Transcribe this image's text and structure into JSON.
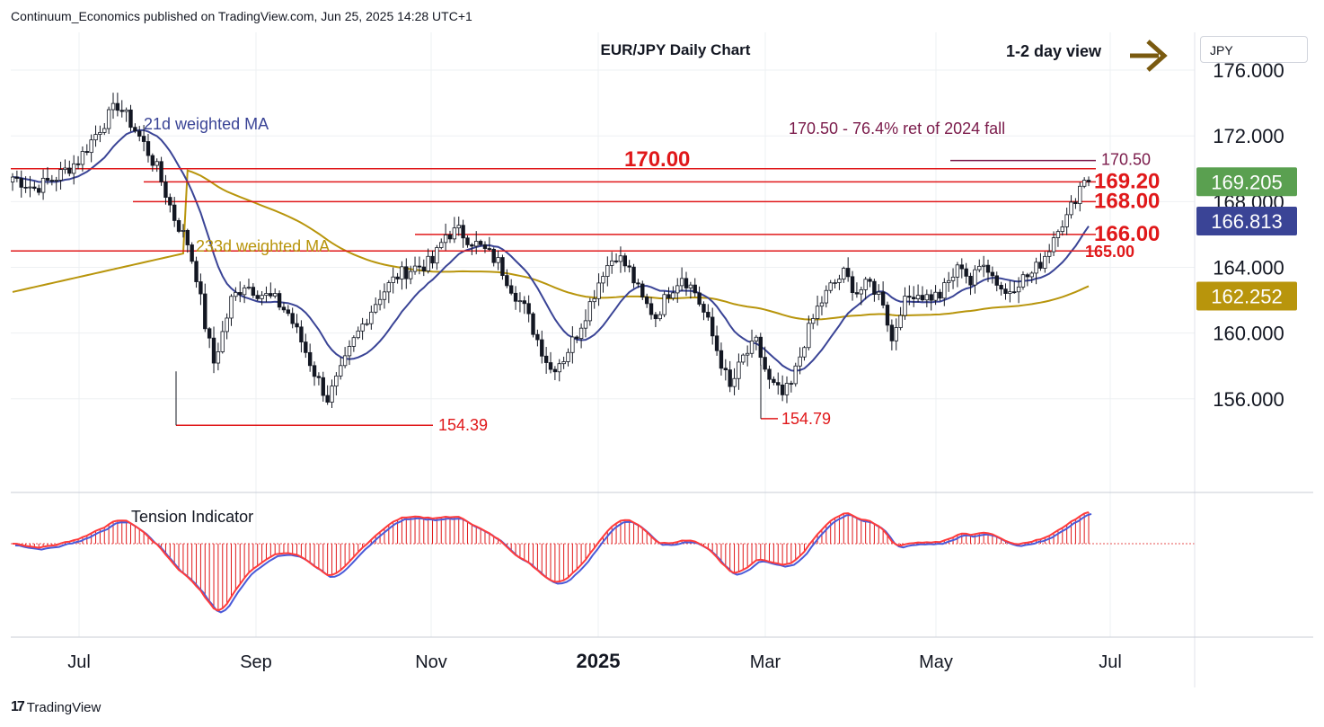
{
  "header": {
    "published": "Continuum_Economics published on TradingView.com, Jun 25, 2025 14:28 UTC+1"
  },
  "currency_selector": {
    "value": "JPY"
  },
  "footer": {
    "logo_text": "TradingView",
    "logo_mark": "17"
  },
  "chart_data": {
    "type": "candlestick",
    "title": "EUR/JPY Daily Chart",
    "view_note": "1-2 day view",
    "view_arrow": "right-arrow-icon",
    "y_ticks": [
      176,
      172,
      168,
      164,
      160,
      156
    ],
    "y_tick_labels": [
      "176.000",
      "172.000",
      "168.000",
      "164.000",
      "160.000",
      "156.000"
    ],
    "ylim": [
      150.3,
      178.3
    ],
    "x_labels": [
      "Jul",
      "Sep",
      "Nov",
      "2025",
      "Mar",
      "May",
      "Jul"
    ],
    "last_price": {
      "label": "169.205",
      "value": 169.205,
      "color": "#5aa050"
    },
    "ma21": {
      "name": "21d weighted MA",
      "label": "166.813",
      "value": 166.813,
      "color": "#3a4496"
    },
    "ma233": {
      "name": "233d weighted MA",
      "label": "162.252",
      "value": 162.252,
      "color": "#b8950c"
    },
    "levels": [
      {
        "label": "170.00",
        "value": 170.0,
        "color": "#e0181a"
      },
      {
        "label": "169.20",
        "value": 169.2,
        "color": "#e0181a"
      },
      {
        "label": "168.00",
        "value": 168.0,
        "color": "#e0181a"
      },
      {
        "label": "166.00",
        "value": 166.0,
        "color": "#e0181a"
      },
      {
        "label": "165.00",
        "value": 165.0,
        "color": "#e0181a"
      }
    ],
    "target": {
      "label": "170.50",
      "value": 170.5,
      "color": "#7a1a4a"
    },
    "annotation": {
      "text": "170.50 - 76.4% ret of 2024 fall",
      "color": "#7a1a4a"
    },
    "lows": [
      {
        "label": "154.39",
        "value": 154.39
      },
      {
        "label": "154.79",
        "value": 154.79
      }
    ],
    "indicator": {
      "name": "Tension Indicator"
    },
    "price_path": [
      [
        0,
        169.5
      ],
      [
        5,
        168.8
      ],
      [
        10,
        169.5
      ],
      [
        15,
        170.5
      ],
      [
        20,
        172.5
      ],
      [
        24,
        173.9
      ],
      [
        27,
        172.8
      ],
      [
        30,
        171.5
      ],
      [
        33,
        170.0
      ],
      [
        35,
        168.5
      ],
      [
        37,
        167.0
      ],
      [
        40,
        165.5
      ],
      [
        42,
        163.5
      ],
      [
        44,
        160.5
      ],
      [
        46,
        158.2
      ],
      [
        48,
        160.0
      ],
      [
        50,
        162.0
      ],
      [
        53,
        163.0
      ],
      [
        56,
        162.5
      ],
      [
        60,
        162.0
      ],
      [
        63,
        161.2
      ],
      [
        66,
        159.5
      ],
      [
        69,
        157.6
      ],
      [
        72,
        156.0
      ],
      [
        75,
        157.6
      ],
      [
        78,
        159.5
      ],
      [
        81,
        161.0
      ],
      [
        84,
        162.3
      ],
      [
        88,
        163.5
      ],
      [
        92,
        164.0
      ],
      [
        96,
        164.3
      ],
      [
        99,
        166.0
      ],
      [
        102,
        166.2
      ],
      [
        105,
        165.6
      ],
      [
        108,
        165.0
      ],
      [
        111,
        164.3
      ],
      [
        114,
        162.8
      ],
      [
        117,
        161.5
      ],
      [
        120,
        159.6
      ],
      [
        123,
        157.8
      ],
      [
        126,
        158.5
      ],
      [
        129,
        160.0
      ],
      [
        132,
        161.8
      ],
      [
        135,
        163.8
      ],
      [
        138,
        164.8
      ],
      [
        141,
        163.8
      ],
      [
        144,
        162.0
      ],
      [
        147,
        161.0
      ],
      [
        150,
        162.5
      ],
      [
        153,
        163.5
      ],
      [
        156,
        162.5
      ],
      [
        159,
        160.6
      ],
      [
        162,
        158.2
      ],
      [
        164,
        156.6
      ],
      [
        167,
        158.5
      ],
      [
        170,
        159.4
      ],
      [
        173,
        157.0
      ],
      [
        176,
        156.2
      ],
      [
        178,
        156.8
      ],
      [
        181,
        159.5
      ],
      [
        184,
        161.5
      ],
      [
        187,
        162.8
      ],
      [
        190,
        163.6
      ],
      [
        193,
        162.5
      ],
      [
        196,
        163.0
      ],
      [
        199,
        162.0
      ],
      [
        201,
        159.5
      ],
      [
        203,
        161.5
      ],
      [
        206,
        162.5
      ],
      [
        209,
        162.2
      ],
      [
        212,
        162.3
      ],
      [
        215,
        163.5
      ],
      [
        217,
        164.2
      ],
      [
        219,
        163.0
      ],
      [
        222,
        164.5
      ],
      [
        224,
        163.5
      ],
      [
        227,
        162.4
      ],
      [
        230,
        163.2
      ],
      [
        233,
        163.6
      ],
      [
        235,
        164.3
      ],
      [
        237,
        165.2
      ],
      [
        239,
        166.6
      ],
      [
        241,
        167.0
      ],
      [
        243,
        168.3
      ],
      [
        245,
        169.5
      ],
      [
        246,
        169.2
      ]
    ]
  }
}
